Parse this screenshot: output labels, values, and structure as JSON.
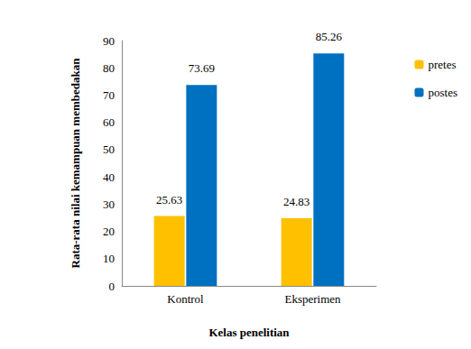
{
  "chart_data": {
    "type": "bar",
    "categories": [
      "Kontrol",
      "Eksperimen"
    ],
    "series": [
      {
        "name": "pretes",
        "color": "#ffc000",
        "values": [
          25.63,
          24.83
        ]
      },
      {
        "name": "postes",
        "color": "#0070c0",
        "values": [
          73.69,
          85.26
        ]
      }
    ],
    "x_label": "Kelas penelitian",
    "y_label": "Rata-rata nilai kemampuan membedakan",
    "ylim": [
      0,
      90
    ],
    "yticks": [
      0,
      10,
      20,
      30,
      40,
      50,
      60,
      70,
      80,
      90
    ],
    "grid": false,
    "legend": "right",
    "data_labels": true
  }
}
